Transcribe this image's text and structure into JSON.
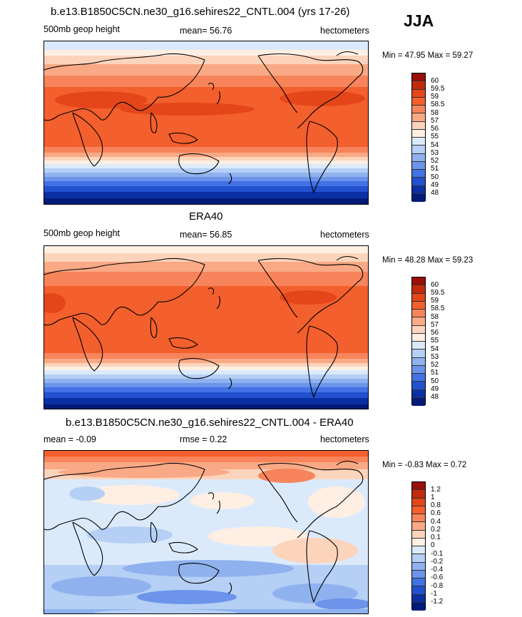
{
  "season": "JJA",
  "panels": [
    {
      "title": "b.e13.B1850C5CN.ne30_g16.sehires22_CNTL.004 (yrs 17-26)",
      "left": "500mb geop height",
      "center": "mean=  56.76",
      "right": "hectometers",
      "minmax": "Min =  47.95 Max =  59.27",
      "levels": [
        "60",
        "59.5",
        "59",
        "58.5",
        "58",
        "57",
        "56",
        "55",
        "54",
        "53",
        "52",
        "51",
        "50",
        "49",
        "48"
      ],
      "colors": [
        "#9b0e0a",
        "#c22a0e",
        "#e4461a",
        "#f35f2d",
        "#f7845a",
        "#f9a985",
        "#fcd4bc",
        "#ffefe3",
        "#dbeafb",
        "#b5cff5",
        "#8fb2ef",
        "#6b94ea",
        "#4272e5",
        "#2350cf",
        "#0b2fa5",
        "#041a78"
      ]
    },
    {
      "title": "ERA40",
      "left": "500mb geop height",
      "center": "mean=  56.85",
      "right": "hectometers",
      "minmax": "Min =  48.28 Max =  59.23",
      "levels": [
        "60",
        "59.5",
        "59",
        "58.5",
        "58",
        "57",
        "56",
        "55",
        "54",
        "53",
        "52",
        "51",
        "50",
        "49",
        "48"
      ],
      "colors": [
        "#9b0e0a",
        "#c22a0e",
        "#e4461a",
        "#f35f2d",
        "#f7845a",
        "#f9a985",
        "#fcd4bc",
        "#ffefe3",
        "#dbeafb",
        "#b5cff5",
        "#8fb2ef",
        "#6b94ea",
        "#4272e5",
        "#2350cf",
        "#0b2fa5",
        "#041a78"
      ]
    },
    {
      "title": "b.e13.B1850C5CN.ne30_g16.sehires22_CNTL.004 - ERA40",
      "left": "mean =  -0.09",
      "center": "rmse =   0.22",
      "right": "hectometers",
      "minmax": "Min =  -0.83 Max =   0.72",
      "levels": [
        "1.2",
        "1",
        "0.8",
        "0.6",
        "0.4",
        "0.2",
        "0.1",
        "0",
        "-0.1",
        "-0.2",
        "-0.4",
        "-0.6",
        "-0.8",
        "-1",
        "-1.2"
      ],
      "colors": [
        "#9b0e0a",
        "#c22a0e",
        "#e4461a",
        "#f35f2d",
        "#f7845a",
        "#f9a985",
        "#fcd4bc",
        "#ffefe3",
        "#dbeafb",
        "#b5cff5",
        "#8fb2ef",
        "#6b94ea",
        "#4272e5",
        "#2350cf",
        "#0b2fa5",
        "#041a78"
      ]
    }
  ]
}
